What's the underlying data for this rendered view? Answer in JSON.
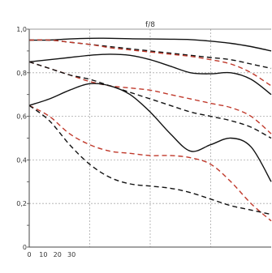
{
  "chart_data": {
    "type": "line",
    "title": "f/8",
    "xlabel": "",
    "ylabel": "",
    "xlim": [
      0,
      120
    ],
    "ylim": [
      0,
      1.0
    ],
    "x_ticks": [
      "0",
      "10",
      "20",
      "30"
    ],
    "y_ticks": [
      "0",
      "0,2",
      "0,4",
      "0,6",
      "0,8",
      "1,0"
    ],
    "grid": true,
    "series": [
      {
        "color": "#111111",
        "dash": "solid",
        "x": [
          0,
          10,
          20,
          30,
          40,
          50,
          60,
          70,
          80,
          90,
          100,
          110,
          120
        ],
        "values": [
          0.95,
          0.95,
          0.955,
          0.958,
          0.958,
          0.956,
          0.955,
          0.954,
          0.952,
          0.945,
          0.935,
          0.92,
          0.9
        ]
      },
      {
        "color": "#111111",
        "dash": "dash",
        "x": [
          0,
          10,
          20,
          30,
          40,
          50,
          60,
          70,
          80,
          90,
          100,
          110,
          120
        ],
        "values": [
          0.95,
          0.95,
          0.94,
          0.93,
          0.92,
          0.91,
          0.9,
          0.89,
          0.88,
          0.87,
          0.86,
          0.84,
          0.82
        ]
      },
      {
        "color": "#c0392b",
        "dash": "dash",
        "x": [
          0,
          10,
          20,
          30,
          40,
          50,
          60,
          70,
          80,
          90,
          100,
          110,
          120
        ],
        "values": [
          0.95,
          0.95,
          0.94,
          0.93,
          0.915,
          0.905,
          0.895,
          0.885,
          0.875,
          0.86,
          0.84,
          0.8,
          0.74
        ]
      },
      {
        "color": "#111111",
        "dash": "solid",
        "x": [
          0,
          10,
          20,
          30,
          40,
          50,
          60,
          70,
          80,
          90,
          100,
          110,
          120
        ],
        "values": [
          0.85,
          0.86,
          0.87,
          0.88,
          0.885,
          0.88,
          0.86,
          0.83,
          0.8,
          0.795,
          0.8,
          0.77,
          0.7
        ]
      },
      {
        "color": "#c0392b",
        "dash": "dash",
        "x": [
          0,
          10,
          20,
          30,
          40,
          50,
          60,
          70,
          80,
          90,
          100,
          110,
          120
        ],
        "values": [
          0.85,
          0.82,
          0.79,
          0.76,
          0.74,
          0.73,
          0.72,
          0.7,
          0.68,
          0.66,
          0.64,
          0.6,
          0.52
        ]
      },
      {
        "color": "#111111",
        "dash": "dash",
        "x": [
          0,
          10,
          20,
          30,
          40,
          50,
          60,
          70,
          80,
          90,
          100,
          110,
          120
        ],
        "values": [
          0.85,
          0.82,
          0.79,
          0.77,
          0.74,
          0.71,
          0.68,
          0.65,
          0.62,
          0.6,
          0.58,
          0.55,
          0.5
        ]
      },
      {
        "color": "#111111",
        "dash": "solid",
        "x": [
          0,
          10,
          20,
          30,
          40,
          50,
          60,
          70,
          80,
          90,
          100,
          110,
          120
        ],
        "values": [
          0.65,
          0.68,
          0.72,
          0.75,
          0.74,
          0.7,
          0.62,
          0.52,
          0.44,
          0.47,
          0.5,
          0.46,
          0.3
        ]
      },
      {
        "color": "#c0392b",
        "dash": "dash",
        "x": [
          0,
          10,
          20,
          30,
          40,
          50,
          60,
          70,
          80,
          90,
          100,
          110,
          120
        ],
        "values": [
          0.65,
          0.6,
          0.52,
          0.47,
          0.44,
          0.43,
          0.42,
          0.42,
          0.41,
          0.38,
          0.3,
          0.2,
          0.12
        ]
      },
      {
        "color": "#111111",
        "dash": "dash",
        "x": [
          0,
          10,
          20,
          30,
          40,
          50,
          60,
          70,
          80,
          90,
          100,
          110,
          120
        ],
        "values": [
          0.65,
          0.58,
          0.47,
          0.38,
          0.32,
          0.29,
          0.28,
          0.27,
          0.25,
          0.22,
          0.19,
          0.17,
          0.15
        ]
      }
    ]
  }
}
